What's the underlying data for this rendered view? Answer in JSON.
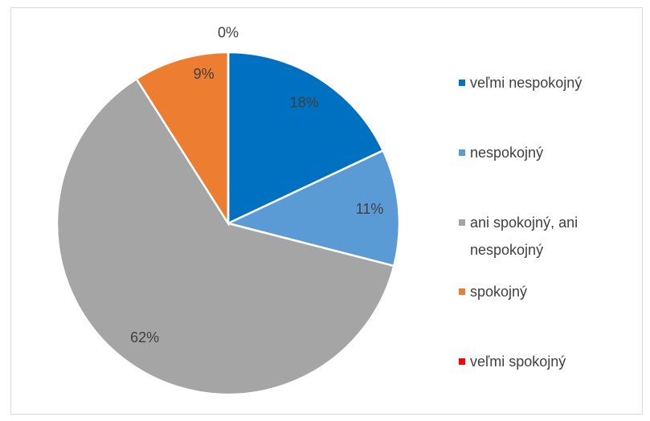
{
  "chart_data": {
    "type": "pie",
    "categories": [
      "veľmi nespokojný",
      "nespokojný",
      "ani spokojný, ani nespokojný",
      "spokojný",
      "veľmi spokojný"
    ],
    "values": [
      18,
      11,
      62,
      9,
      0
    ],
    "value_labels": [
      "18%",
      "11%",
      "62%",
      "9%",
      "0%"
    ],
    "colors": [
      "#0070c0",
      "#5b9bd5",
      "#a5a5a5",
      "#ed7d31",
      "#ff0000"
    ]
  }
}
